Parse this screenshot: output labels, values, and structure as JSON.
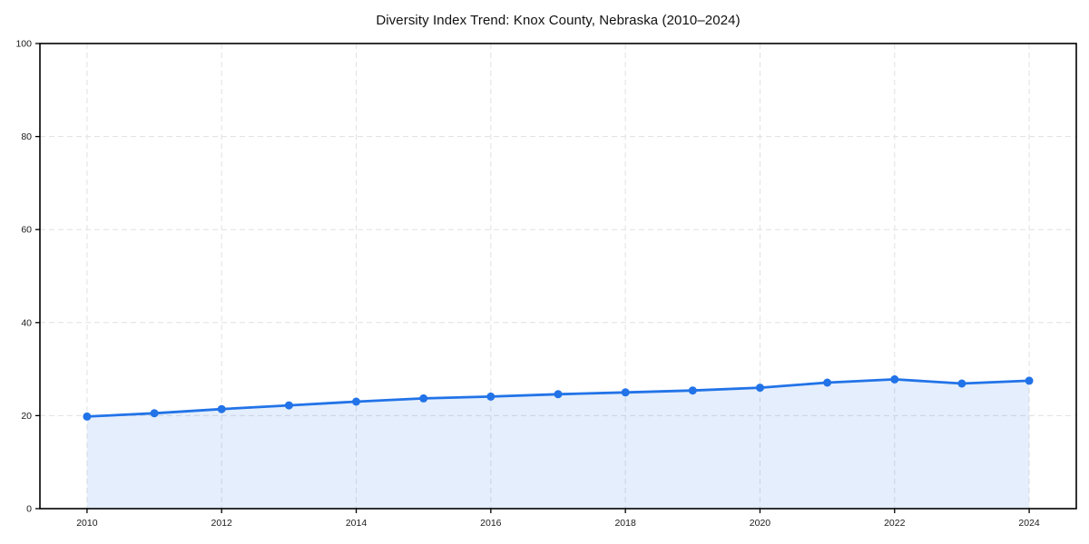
{
  "page": {
    "background": "#ffffff"
  },
  "header": {
    "title": "Diversity Index Trend: Knox County, Nebraska (2010–2024)"
  },
  "chart_data": {
    "type": "line",
    "title": "Diversity Index Trend: Knox County, Nebraska (2010–2024)",
    "x": [
      2010,
      2011,
      2012,
      2013,
      2014,
      2015,
      2016,
      2017,
      2018,
      2019,
      2020,
      2021,
      2022,
      2023,
      2024
    ],
    "values": [
      19.8,
      20.5,
      21.4,
      22.2,
      23.0,
      23.7,
      24.1,
      24.6,
      25.0,
      25.4,
      26.0,
      27.1,
      27.8,
      26.9,
      27.5
    ],
    "xlabel": "",
    "ylabel": "",
    "xlim": [
      2009.3,
      2024.7
    ],
    "ylim": [
      0,
      100
    ],
    "xticks": [
      2010,
      2012,
      2014,
      2016,
      2018,
      2020,
      2022,
      2024
    ],
    "yticks": [
      0,
      20,
      40,
      60,
      80,
      100
    ],
    "grid": "dashed",
    "legend": "none",
    "area_fill": true,
    "marker": "circle",
    "colors": {
      "line": "#2273e8",
      "marker": "#2273e8",
      "area": "rgba(34,115,232,0.12)",
      "grid": "#e1e1e1",
      "axis": "#000000",
      "tick_label": "#1a1a1a",
      "title": "#111111"
    }
  }
}
